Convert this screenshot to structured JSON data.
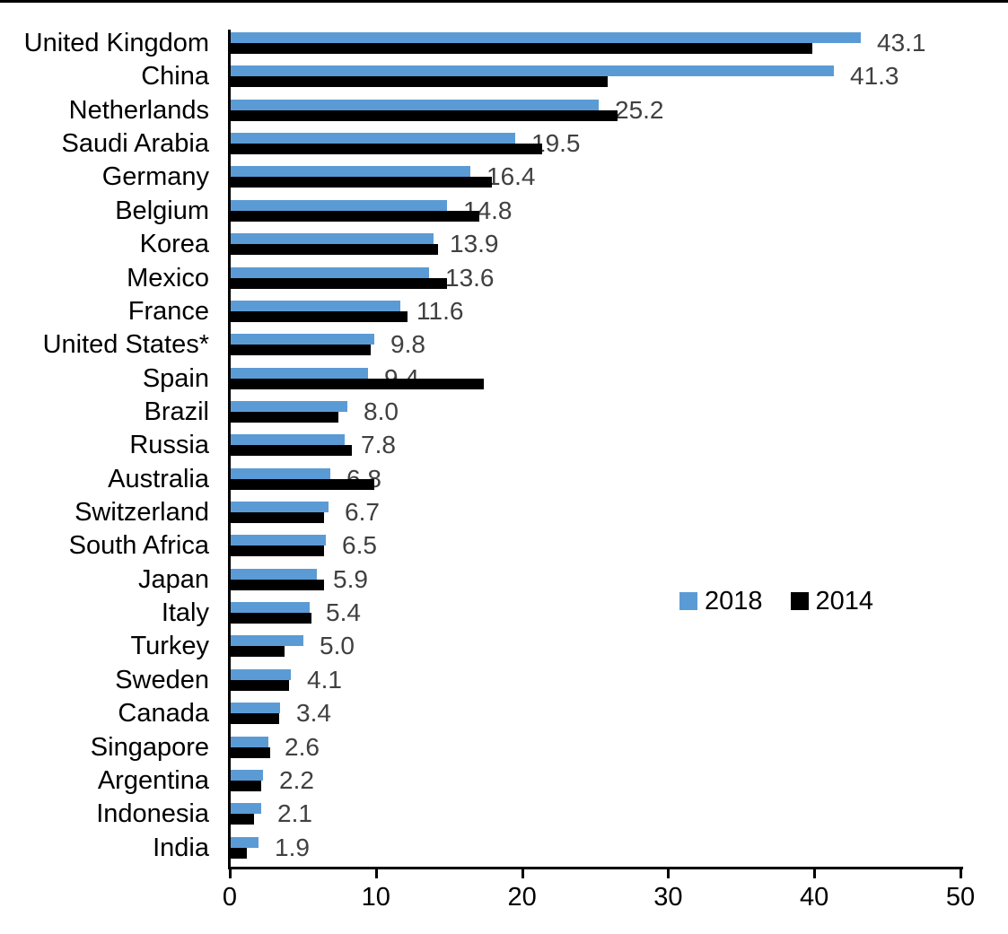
{
  "chart_data": {
    "type": "bar",
    "orientation": "horizontal",
    "title": "",
    "xlabel": "",
    "ylabel": "",
    "xlim": [
      0,
      50
    ],
    "x_ticks": [
      "0",
      "10",
      "20",
      "30",
      "40",
      "50"
    ],
    "grid": false,
    "legend_position": "middle-right",
    "categories": [
      "United Kingdom",
      "China",
      "Netherlands",
      "Saudi Arabia",
      "Germany",
      "Belgium",
      "Korea",
      "Mexico",
      "France",
      "United States*",
      "Spain",
      "Brazil",
      "Russia",
      "Australia",
      "Switzerland",
      "South Africa",
      "Japan",
      "Italy",
      "Turkey",
      "Sweden",
      "Canada",
      "Singapore",
      "Argentina",
      "Indonesia",
      "India"
    ],
    "series": [
      {
        "name": "2018",
        "color": "#5B9BD5",
        "values": [
          43.1,
          41.3,
          25.2,
          19.5,
          16.4,
          14.8,
          13.9,
          13.6,
          11.6,
          9.8,
          9.4,
          8.0,
          7.8,
          6.8,
          6.7,
          6.5,
          5.9,
          5.4,
          5.0,
          4.1,
          3.4,
          2.6,
          2.2,
          2.1,
          1.9
        ]
      },
      {
        "name": "2014",
        "color": "#000000",
        "values": [
          39.8,
          25.8,
          26.5,
          21.3,
          17.9,
          17.0,
          14.2,
          14.8,
          12.1,
          9.6,
          17.3,
          7.4,
          8.3,
          9.8,
          6.4,
          6.4,
          6.4,
          5.5,
          3.7,
          4.0,
          3.3,
          2.7,
          2.1,
          1.6,
          1.1
        ]
      }
    ],
    "value_labels": [
      "43.1",
      "41.3",
      "25.2",
      "19.5",
      "16.4",
      "14.8",
      "13.9",
      "13.6",
      "11.6",
      "9.8",
      "9.4",
      "8.0",
      "7.8",
      "6.8",
      "6.7",
      "6.5",
      "5.9",
      "5.4",
      "5.0",
      "4.1",
      "3.4",
      "2.6",
      "2.2",
      "2.1",
      "1.9"
    ],
    "value_labels_series": "2018"
  },
  "colors": {
    "bar_2018": "#5B9BD5",
    "bar_2014": "#000000",
    "value_label": "#404040",
    "axis": "#000000",
    "background": "#ffffff"
  }
}
